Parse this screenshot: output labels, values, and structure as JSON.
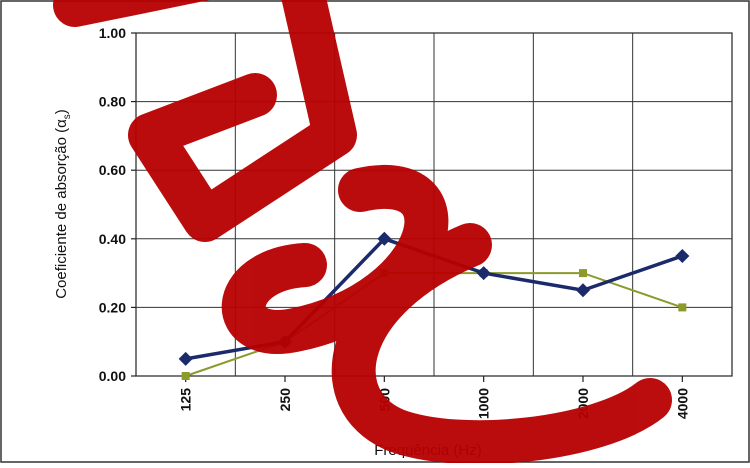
{
  "chart_data": {
    "type": "line",
    "title": "",
    "xlabel": "Frequência (Hz)",
    "ylabel": "Coeficiente de absorção (α",
    "ylabel_subscript": "s",
    "ylabel_close": ")",
    "categories": [
      "125",
      "250",
      "500",
      "1000",
      "2000",
      "4000"
    ],
    "ylim": [
      0,
      1
    ],
    "yticks": [
      "0.00",
      "0.20",
      "0.40",
      "0.60",
      "0.80",
      "1.00"
    ],
    "ytick_values": [
      0,
      0.2,
      0.4,
      0.6,
      0.8,
      1.0
    ],
    "grid": true,
    "legend": "none",
    "series": [
      {
        "values": [
          0.05,
          0.1,
          0.4,
          0.3,
          0.25,
          0.35
        ],
        "color": "#1b2a6b",
        "marker": "diamond"
      },
      {
        "values": [
          0.0,
          0.1,
          0.3,
          0.3,
          0.3,
          0.2
        ],
        "color": "#8c9a2c",
        "marker": "square"
      }
    ]
  },
  "watermark": {
    "color": "#b70000"
  }
}
